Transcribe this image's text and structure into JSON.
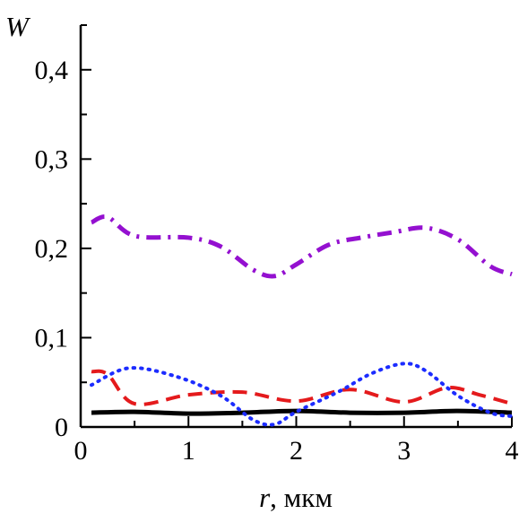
{
  "chart_data": {
    "type": "line",
    "title": "",
    "ylabel": "W",
    "xlabel_var": "r",
    "xlabel_unit": ", мкм",
    "xlim": [
      0,
      4
    ],
    "ylim": [
      0,
      0.45
    ],
    "grid": false,
    "legend": "none",
    "x_ticks": [
      {
        "value": 0,
        "label": "0"
      },
      {
        "value": 1,
        "label": "1"
      },
      {
        "value": 2,
        "label": "2"
      },
      {
        "value": 3,
        "label": "3"
      },
      {
        "value": 4,
        "label": "4"
      }
    ],
    "y_ticks": [
      {
        "value": 0,
        "label": "0"
      },
      {
        "value": 0.1,
        "label": "0,1"
      },
      {
        "value": 0.2,
        "label": "0,2"
      },
      {
        "value": 0.3,
        "label": "0,3"
      },
      {
        "value": 0.4,
        "label": "0,4"
      }
    ],
    "series": [
      {
        "color": "#000000",
        "style": "solid",
        "width": 5,
        "x": [
          0.1,
          0.5,
          1.0,
          1.5,
          2.0,
          2.5,
          3.0,
          3.5,
          4.0
        ],
        "y": [
          0.016,
          0.017,
          0.015,
          0.016,
          0.018,
          0.016,
          0.016,
          0.018,
          0.016
        ]
      },
      {
        "color": "#e41a1c",
        "style": "dashed",
        "width": 4,
        "x": [
          0.1,
          0.25,
          0.5,
          1.0,
          1.5,
          2.0,
          2.5,
          3.0,
          3.4,
          3.7,
          4.0
        ],
        "y": [
          0.062,
          0.059,
          0.026,
          0.036,
          0.039,
          0.029,
          0.042,
          0.028,
          0.044,
          0.036,
          0.026
        ]
      },
      {
        "color": "#1c2cff",
        "style": "dotted",
        "width": 4,
        "x": [
          0.1,
          0.45,
          0.9,
          1.3,
          1.6,
          1.8,
          2.0,
          2.4,
          2.7,
          3.0,
          3.2,
          3.5,
          3.8,
          4.0
        ],
        "y": [
          0.047,
          0.066,
          0.056,
          0.035,
          0.008,
          0.003,
          0.017,
          0.04,
          0.06,
          0.071,
          0.063,
          0.035,
          0.016,
          0.012
        ]
      },
      {
        "color": "#9410d0",
        "style": "dashdot",
        "width": 5,
        "x": [
          0.1,
          0.25,
          0.5,
          1.0,
          1.3,
          1.6,
          1.8,
          2.0,
          2.3,
          2.6,
          2.9,
          3.2,
          3.5,
          3.8,
          4.0
        ],
        "y": [
          0.229,
          0.235,
          0.214,
          0.212,
          0.202,
          0.176,
          0.169,
          0.182,
          0.204,
          0.212,
          0.218,
          0.223,
          0.21,
          0.18,
          0.171
        ]
      }
    ]
  }
}
